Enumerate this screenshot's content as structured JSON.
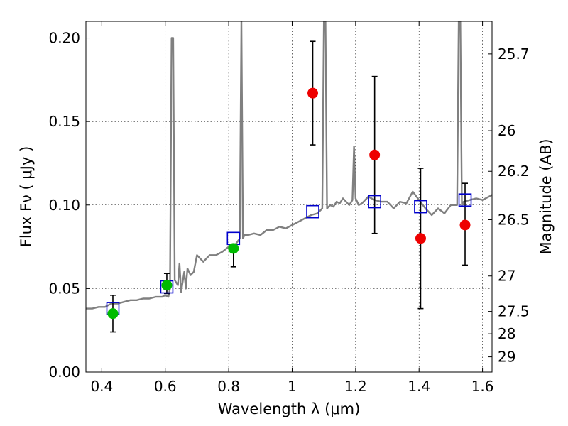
{
  "chart_data": {
    "type": "scatter",
    "xlabel": "Wavelength  λ (μm)",
    "ylabel": "Flux  Fν  ( μJy )",
    "y2label": "Magnitude (AB)",
    "xlim": [
      0.35,
      1.63
    ],
    "ylim": [
      0.0,
      0.21
    ],
    "grid": true,
    "x_ticks": [
      0.4,
      0.6,
      0.8,
      1.0,
      1.2,
      1.4,
      1.6
    ],
    "x_tick_labels": [
      "0.4",
      "0.6",
      "0.8",
      "1",
      "1.2",
      "1.4",
      "1.6"
    ],
    "y_ticks": [
      0.0,
      0.05,
      0.1,
      0.15,
      0.2
    ],
    "y_tick_labels": [
      "0.00",
      "0.05",
      "0.10",
      "0.15",
      "0.20"
    ],
    "mag_ticks": [
      {
        "label": "25.7",
        "flux": 0.1905
      },
      {
        "label": "26",
        "flux": 0.1445
      },
      {
        "label": "26.2",
        "flux": 0.1202
      },
      {
        "label": "26.5",
        "flux": 0.0912
      },
      {
        "label": "27",
        "flux": 0.0575
      },
      {
        "label": "27.5",
        "flux": 0.0363
      },
      {
        "label": "28",
        "flux": 0.0229
      },
      {
        "label": "29",
        "flux": 0.0091
      }
    ],
    "series": [
      {
        "kind": "line",
        "color": "#808080",
        "x": [
          0.35,
          0.37,
          0.39,
          0.41,
          0.43,
          0.45,
          0.47,
          0.49,
          0.51,
          0.53,
          0.55,
          0.57,
          0.59,
          0.6,
          0.61,
          0.615,
          0.62,
          0.625,
          0.63,
          0.64,
          0.645,
          0.65,
          0.66,
          0.665,
          0.67,
          0.68,
          0.69,
          0.7,
          0.72,
          0.74,
          0.76,
          0.78,
          0.8,
          0.82,
          0.835,
          0.84,
          0.845,
          0.85,
          0.86,
          0.88,
          0.9,
          0.92,
          0.94,
          0.96,
          0.98,
          1.0,
          1.02,
          1.04,
          1.06,
          1.08,
          1.095,
          1.1,
          1.105,
          1.11,
          1.12,
          1.13,
          1.14,
          1.15,
          1.16,
          1.17,
          1.18,
          1.19,
          1.195,
          1.2,
          1.21,
          1.22,
          1.24,
          1.26,
          1.28,
          1.3,
          1.32,
          1.34,
          1.36,
          1.38,
          1.4,
          1.42,
          1.44,
          1.46,
          1.48,
          1.5,
          1.52,
          1.525,
          1.53,
          1.535,
          1.54,
          1.56,
          1.58,
          1.6,
          1.63
        ],
        "y": [
          0.038,
          0.038,
          0.039,
          0.039,
          0.041,
          0.041,
          0.042,
          0.043,
          0.043,
          0.044,
          0.044,
          0.045,
          0.045,
          0.046,
          0.045,
          0.05,
          0.2,
          0.2,
          0.055,
          0.052,
          0.065,
          0.048,
          0.06,
          0.05,
          0.062,
          0.058,
          0.06,
          0.07,
          0.066,
          0.07,
          0.07,
          0.072,
          0.075,
          0.076,
          0.08,
          0.21,
          0.08,
          0.082,
          0.082,
          0.083,
          0.082,
          0.085,
          0.085,
          0.087,
          0.086,
          0.088,
          0.09,
          0.092,
          0.094,
          0.095,
          0.098,
          0.21,
          0.21,
          0.098,
          0.1,
          0.099,
          0.102,
          0.101,
          0.104,
          0.102,
          0.1,
          0.103,
          0.135,
          0.104,
          0.1,
          0.101,
          0.105,
          0.103,
          0.102,
          0.102,
          0.098,
          0.102,
          0.101,
          0.108,
          0.103,
          0.098,
          0.094,
          0.098,
          0.095,
          0.1,
          0.1,
          0.21,
          0.21,
          0.1,
          0.102,
          0.103,
          0.104,
          0.103,
          0.106
        ]
      },
      {
        "kind": "squares",
        "color": "#0000cc",
        "x": [
          0.435,
          0.605,
          0.815,
          1.065,
          1.26,
          1.405,
          1.545
        ],
        "y": [
          0.038,
          0.051,
          0.08,
          0.096,
          0.102,
          0.099,
          0.103
        ]
      },
      {
        "kind": "points",
        "color": "#00bb00",
        "x": [
          0.435,
          0.605,
          0.815
        ],
        "y": [
          0.035,
          0.052,
          0.074
        ]
      },
      {
        "kind": "points",
        "color": "#ee0000",
        "x": [
          1.065,
          1.26,
          1.405,
          1.545
        ],
        "y": [
          0.167,
          0.13,
          0.08,
          0.088
        ]
      },
      {
        "kind": "errorbars",
        "color": "#000000",
        "x": [
          0.435,
          0.605,
          0.815,
          1.065,
          1.26,
          1.405,
          1.545
        ],
        "low": [
          0.024,
          0.047,
          0.063,
          0.136,
          0.083,
          0.038,
          0.064
        ],
        "high": [
          0.046,
          0.059,
          0.074,
          0.198,
          0.177,
          0.122,
          0.113
        ]
      }
    ]
  }
}
